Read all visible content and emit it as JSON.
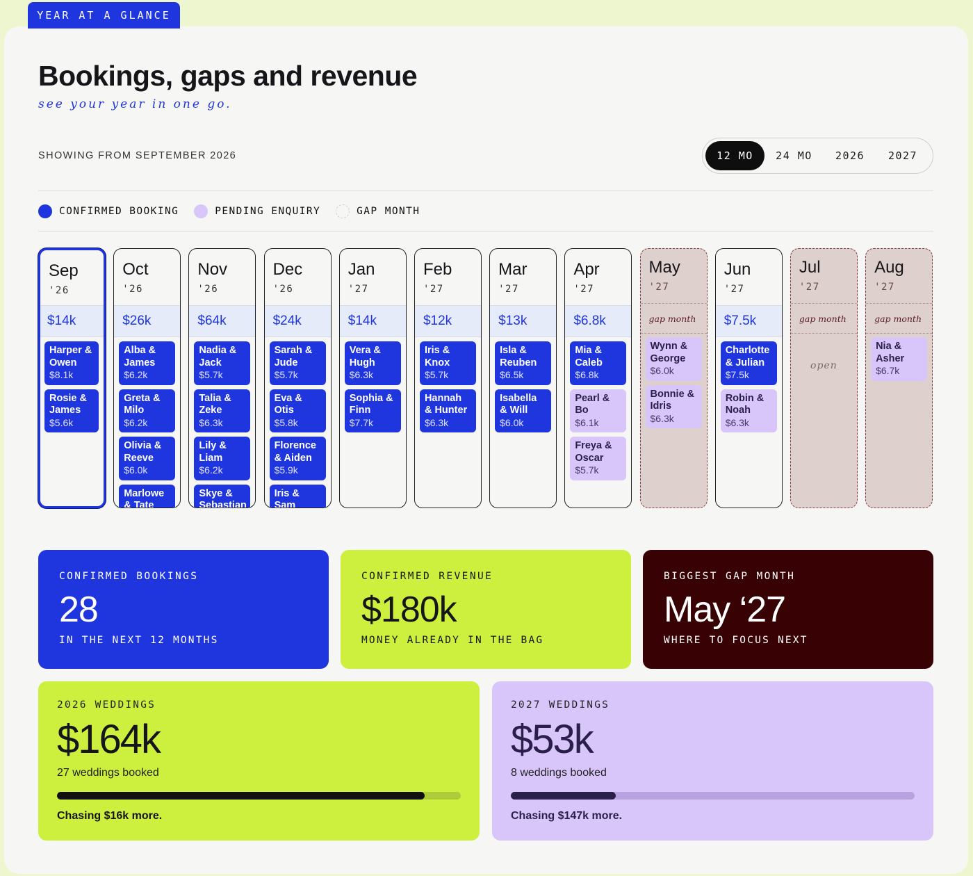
{
  "tab_label": "YEAR AT A GLANCE",
  "header": {
    "title": "Bookings, gaps and revenue",
    "subtitle": "see your year in one go.",
    "showing": "SHOWING FROM SEPTEMBER 2026"
  },
  "range_selector": {
    "options": [
      "12 MO",
      "24 MO",
      "2026",
      "2027"
    ],
    "selected": "12 MO"
  },
  "legend": {
    "confirmed": "CONFIRMED BOOKING",
    "pending": "PENDING ENQUIRY",
    "gap": "GAP MONTH"
  },
  "colors": {
    "confirmed": "#1f36de",
    "pending": "#d8c6fb",
    "gap": "#ddd0cd",
    "accent_lime": "#cdef3e",
    "dark_maroon": "#380205"
  },
  "months": [
    {
      "name": "Sep",
      "year": "'26",
      "revenue": "$14k",
      "gap": false,
      "selected": true,
      "bookings": [
        {
          "names": "Harper & Owen",
          "amount": "$8.1k",
          "status": "confirmed"
        },
        {
          "names": "Rosie & James",
          "amount": "$5.6k",
          "status": "confirmed"
        }
      ]
    },
    {
      "name": "Oct",
      "year": "'26",
      "revenue": "$26k",
      "gap": false,
      "bookings": [
        {
          "names": "Alba & James",
          "amount": "$6.2k",
          "status": "confirmed"
        },
        {
          "names": "Greta & Milo",
          "amount": "$6.2k",
          "status": "confirmed"
        },
        {
          "names": "Olivia & Reeve",
          "amount": "$6.0k",
          "status": "confirmed"
        },
        {
          "names": "Marlowe & Tate",
          "amount": "",
          "status": "confirmed"
        }
      ]
    },
    {
      "name": "Nov",
      "year": "'26",
      "revenue": "$64k",
      "gap": false,
      "bookings": [
        {
          "names": "Nadia & Jack",
          "amount": "$5.7k",
          "status": "confirmed"
        },
        {
          "names": "Talia & Zeke",
          "amount": "$6.3k",
          "status": "confirmed"
        },
        {
          "names": "Lily & Liam",
          "amount": "$6.2k",
          "status": "confirmed"
        },
        {
          "names": "Skye & Sebastian",
          "amount": "",
          "status": "confirmed"
        }
      ]
    },
    {
      "name": "Dec",
      "year": "'26",
      "revenue": "$24k",
      "gap": false,
      "bookings": [
        {
          "names": "Sarah & Jude",
          "amount": "$5.7k",
          "status": "confirmed"
        },
        {
          "names": "Eva & Otis",
          "amount": "$5.8k",
          "status": "confirmed"
        },
        {
          "names": "Florence & Aiden",
          "amount": "$5.9k",
          "status": "confirmed"
        },
        {
          "names": "Iris & Sam",
          "amount": "",
          "status": "confirmed"
        }
      ]
    },
    {
      "name": "Jan",
      "year": "'27",
      "revenue": "$14k",
      "gap": false,
      "bookings": [
        {
          "names": "Vera & Hugh",
          "amount": "$6.3k",
          "status": "confirmed"
        },
        {
          "names": "Sophia & Finn",
          "amount": "$7.7k",
          "status": "confirmed"
        }
      ]
    },
    {
      "name": "Feb",
      "year": "'27",
      "revenue": "$12k",
      "gap": false,
      "bookings": [
        {
          "names": "Iris & Knox",
          "amount": "$5.7k",
          "status": "confirmed"
        },
        {
          "names": "Hannah & Hunter",
          "amount": "$6.3k",
          "status": "confirmed"
        }
      ]
    },
    {
      "name": "Mar",
      "year": "'27",
      "revenue": "$13k",
      "gap": false,
      "bookings": [
        {
          "names": "Isla & Reuben",
          "amount": "$6.5k",
          "status": "confirmed"
        },
        {
          "names": "Isabella & Will",
          "amount": "$6.0k",
          "status": "confirmed"
        }
      ]
    },
    {
      "name": "Apr",
      "year": "'27",
      "revenue": "$6.8k",
      "gap": false,
      "bookings": [
        {
          "names": "Mia & Caleb",
          "amount": "$6.8k",
          "status": "confirmed"
        },
        {
          "names": "Pearl & Bo",
          "amount": "$6.1k",
          "status": "pending"
        },
        {
          "names": "Freya & Oscar",
          "amount": "$5.7k",
          "status": "pending"
        }
      ]
    },
    {
      "name": "May",
      "year": "'27",
      "revenue": "gap month",
      "gap": true,
      "bookings": [
        {
          "names": "Wynn & George",
          "amount": "$6.0k",
          "status": "pending"
        },
        {
          "names": "Bonnie & Idris",
          "amount": "$6.3k",
          "status": "pending"
        }
      ]
    },
    {
      "name": "Jun",
      "year": "'27",
      "revenue": "$7.5k",
      "gap": false,
      "bookings": [
        {
          "names": "Charlotte & Julian",
          "amount": "$7.5k",
          "status": "confirmed"
        },
        {
          "names": "Robin & Noah",
          "amount": "$6.3k",
          "status": "pending"
        }
      ]
    },
    {
      "name": "Jul",
      "year": "'27",
      "revenue": "gap month",
      "gap": true,
      "open_label": "open",
      "bookings": []
    },
    {
      "name": "Aug",
      "year": "'27",
      "revenue": "gap month",
      "gap": true,
      "bookings": [
        {
          "names": "Nia & Asher",
          "amount": "$6.7k",
          "status": "pending"
        }
      ]
    }
  ],
  "stats": [
    {
      "label": "CONFIRMED BOOKINGS",
      "value": "28",
      "sub": "IN THE NEXT 12 MONTHS"
    },
    {
      "label": "CONFIRMED REVENUE",
      "value": "$180k",
      "sub": "MONEY ALREADY IN THE BAG"
    },
    {
      "label": "BIGGEST GAP MONTH",
      "value": "May ‘27",
      "sub": "WHERE TO FOCUS NEXT"
    }
  ],
  "weddings": [
    {
      "label": "2026 WEDDINGS",
      "value": "$164k",
      "count": "27 weddings booked",
      "progress": 0.91,
      "chase": "Chasing $16k more."
    },
    {
      "label": "2027 WEDDINGS",
      "value": "$53k",
      "count": "8 weddings booked",
      "progress": 0.26,
      "chase": "Chasing $147k more."
    }
  ]
}
